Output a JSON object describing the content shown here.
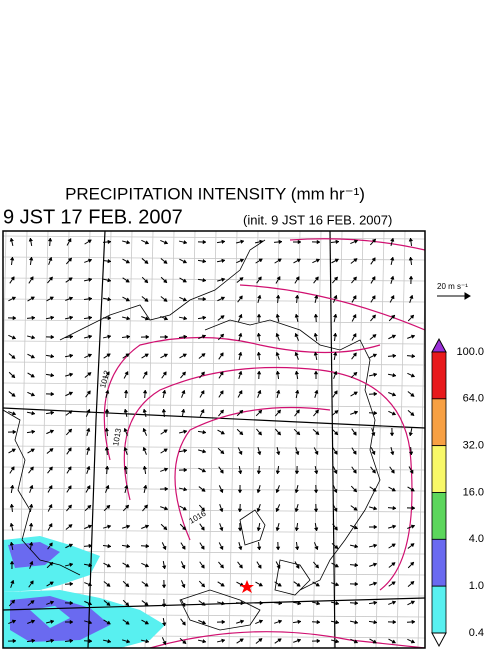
{
  "header": {
    "title": "PRECIPITATION INTENSITY (mm hr⁻¹)",
    "valid_time": "9 JST 17 FEB. 2007",
    "init_time": "(init. 9 JST 16 FEB. 2007)"
  },
  "map": {
    "wind_scale_label": "20 m s⁻¹",
    "contour_labels": [
      "1012",
      "1013",
      "1016"
    ]
  },
  "colorbar": {
    "labels": [
      "100.0",
      "64.0",
      "32.0",
      "16.0",
      "4.0",
      "1.0",
      "0.4"
    ],
    "colors": [
      "#9b30d8",
      "#e8191c",
      "#f7a043",
      "#f8f868",
      "#5cd65c",
      "#6a6af0",
      "#58f0f0",
      "#ffffff"
    ]
  }
}
